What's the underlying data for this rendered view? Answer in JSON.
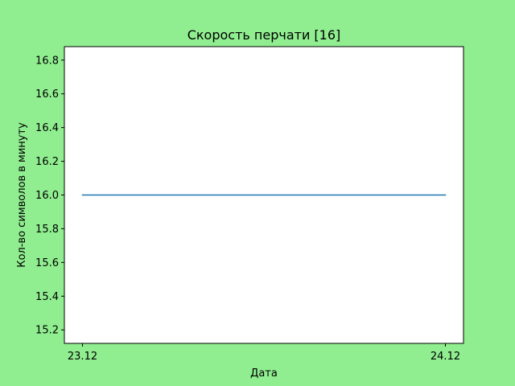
{
  "chart_data": {
    "type": "line",
    "title": "Скорость перчати [16]",
    "xlabel": "Дата",
    "ylabel": "Кол-во символов в минуту",
    "x": [
      "23.12",
      "24.12"
    ],
    "series": [
      {
        "values": [
          16.0,
          16.0
        ]
      }
    ],
    "ylim": [
      15.12,
      16.88
    ],
    "yticks": [
      15.2,
      15.4,
      15.6,
      15.8,
      16.0,
      16.2,
      16.4,
      16.6,
      16.8
    ],
    "ytick_labels": [
      "15.2",
      "15.4",
      "15.6",
      "15.8",
      "16.0",
      "16.2",
      "16.4",
      "16.6",
      "16.8"
    ],
    "grid": false,
    "legend": "none"
  },
  "colors": {
    "figure_background": "#90ee90",
    "plot_background": "#ffffff",
    "line": "#1f77b4"
  }
}
